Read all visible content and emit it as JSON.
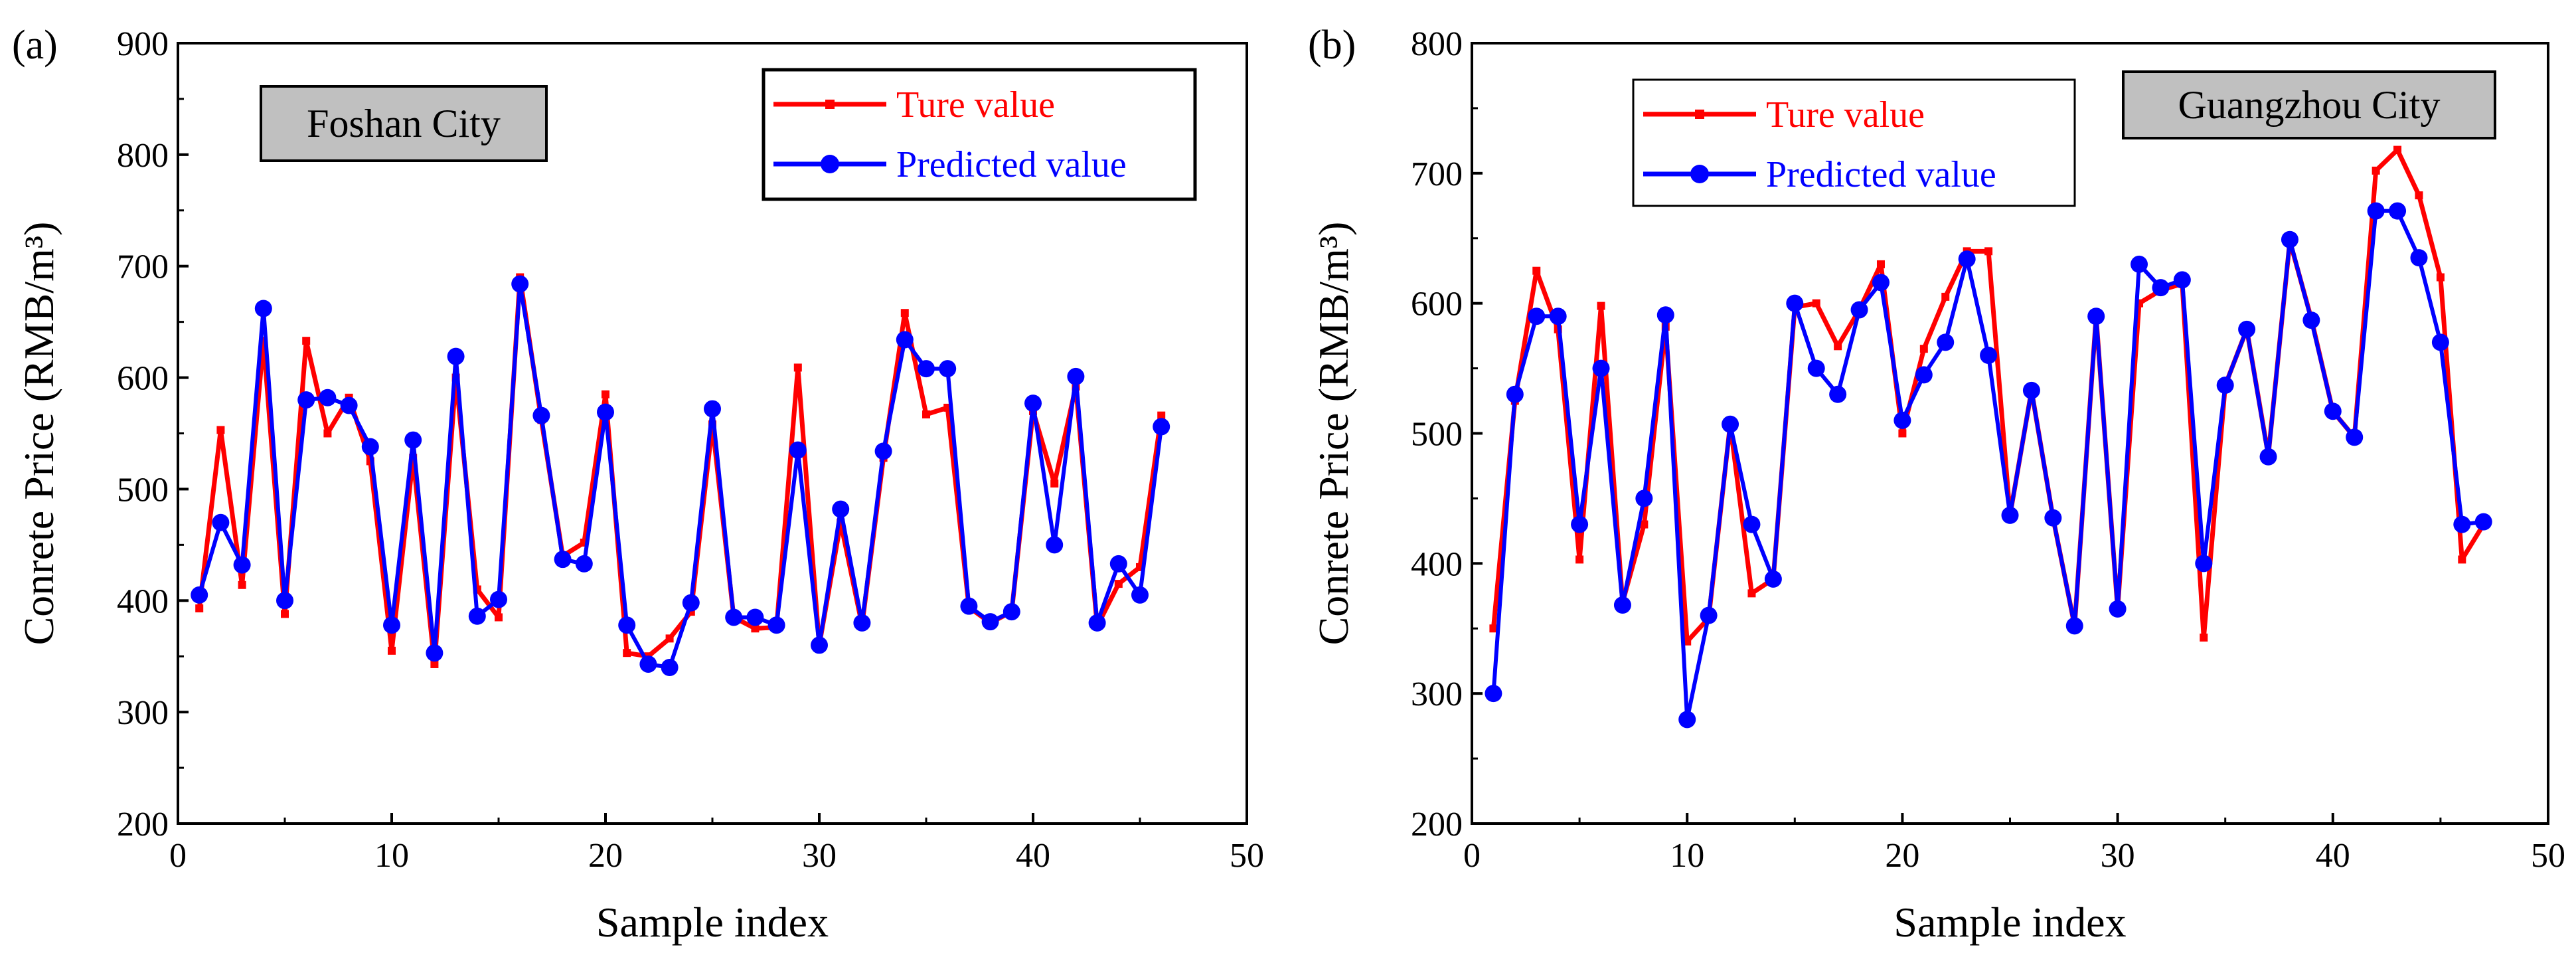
{
  "chart_data": [
    {
      "type": "line",
      "panel_label": "(a)",
      "annotation": "Foshan City",
      "xlabel": "Sample index",
      "ylabel": "Conrete Price (RMB/m³)",
      "xlim": [
        0,
        50
      ],
      "ylim": [
        200,
        900
      ],
      "xticks": [
        0,
        10,
        20,
        30,
        40,
        50
      ],
      "yticks": [
        200,
        300,
        400,
        500,
        600,
        700,
        800,
        900
      ],
      "legend_position": "top-right",
      "series": [
        {
          "name": "Ture value",
          "color": "#ff0000",
          "marker": "square",
          "x": [
            1,
            2,
            3,
            4,
            5,
            6,
            7,
            8,
            9,
            10,
            11,
            12,
            13,
            14,
            15,
            16,
            17,
            18,
            19,
            20,
            21,
            22,
            23,
            24,
            25,
            26,
            27,
            28,
            29,
            30,
            31,
            32,
            33,
            34,
            35,
            36,
            37,
            38,
            39,
            40,
            41,
            42,
            43,
            44,
            45,
            46
          ],
          "values": [
            393,
            553,
            414,
            633,
            388,
            633,
            550,
            582,
            525,
            355,
            528,
            343,
            600,
            410,
            385,
            690,
            562,
            440,
            452,
            585,
            353,
            350,
            366,
            390,
            558,
            385,
            375,
            376,
            609,
            360,
            470,
            378,
            528,
            658,
            567,
            573,
            394,
            380,
            390,
            570,
            505,
            592,
            377,
            415,
            430,
            566
          ]
        },
        {
          "name": "Predicted value",
          "color": "#0000ff",
          "marker": "circle",
          "x": [
            1,
            2,
            3,
            4,
            5,
            6,
            7,
            8,
            9,
            10,
            11,
            12,
            13,
            14,
            15,
            16,
            17,
            18,
            19,
            20,
            21,
            22,
            23,
            24,
            25,
            26,
            27,
            28,
            29,
            30,
            31,
            32,
            33,
            34,
            35,
            36,
            37,
            38,
            39,
            40,
            41,
            42,
            43,
            44,
            45,
            46
          ],
          "values": [
            405,
            470,
            432,
            662,
            400,
            580,
            582,
            575,
            538,
            378,
            544,
            353,
            619,
            386,
            401,
            684,
            566,
            437,
            433,
            569,
            378,
            343,
            340,
            398,
            572,
            385,
            385,
            378,
            535,
            360,
            482,
            380,
            534,
            634,
            608,
            608,
            395,
            381,
            390,
            577,
            450,
            601,
            380,
            433,
            405,
            556
          ]
        }
      ]
    },
    {
      "type": "line",
      "panel_label": "(b)",
      "annotation": "Guangzhou City",
      "xlabel": "Sample index",
      "ylabel": "Conrete Price (RMB/m³)",
      "xlim": [
        0,
        50
      ],
      "ylim": [
        200,
        800
      ],
      "xticks": [
        0,
        10,
        20,
        30,
        40,
        50
      ],
      "yticks": [
        200,
        300,
        400,
        500,
        600,
        700,
        800
      ],
      "legend_position": "top-left",
      "series": [
        {
          "name": "Ture value",
          "color": "#ff0000",
          "marker": "square",
          "x": [
            1,
            2,
            3,
            4,
            5,
            6,
            7,
            8,
            9,
            10,
            11,
            12,
            13,
            14,
            15,
            16,
            17,
            18,
            19,
            20,
            21,
            22,
            23,
            24,
            25,
            26,
            27,
            28,
            29,
            30,
            31,
            32,
            33,
            34,
            35,
            36,
            37,
            38,
            39,
            40,
            41,
            42,
            43,
            44,
            45,
            46,
            47
          ],
          "values": [
            350,
            525,
            625,
            580,
            403,
            598,
            370,
            430,
            582,
            340,
            358,
            507,
            377,
            388,
            597,
            600,
            567,
            595,
            630,
            500,
            565,
            605,
            640,
            640,
            437,
            533,
            435,
            352,
            590,
            365,
            600,
            610,
            615,
            343,
            537,
            580,
            483,
            648,
            588,
            517,
            497,
            702,
            718,
            683,
            620,
            403,
            430
          ]
        },
        {
          "name": "Predicted value",
          "color": "#0000ff",
          "marker": "circle",
          "x": [
            1,
            2,
            3,
            4,
            5,
            6,
            7,
            8,
            9,
            10,
            11,
            12,
            13,
            14,
            15,
            16,
            17,
            18,
            19,
            20,
            21,
            22,
            23,
            24,
            25,
            26,
            27,
            28,
            29,
            30,
            31,
            32,
            33,
            34,
            35,
            36,
            37,
            38,
            39,
            40,
            41,
            42,
            43,
            44,
            45,
            46,
            47
          ],
          "values": [
            300,
            530,
            590,
            590,
            430,
            550,
            368,
            450,
            591,
            280,
            360,
            507,
            430,
            388,
            600,
            550,
            530,
            595,
            616,
            510,
            545,
            570,
            634,
            560,
            437,
            533,
            435,
            352,
            590,
            365,
            630,
            612,
            618,
            400,
            537,
            580,
            482,
            649,
            587,
            517,
            497,
            671,
            671,
            635,
            570,
            430,
            432
          ]
        }
      ]
    }
  ]
}
